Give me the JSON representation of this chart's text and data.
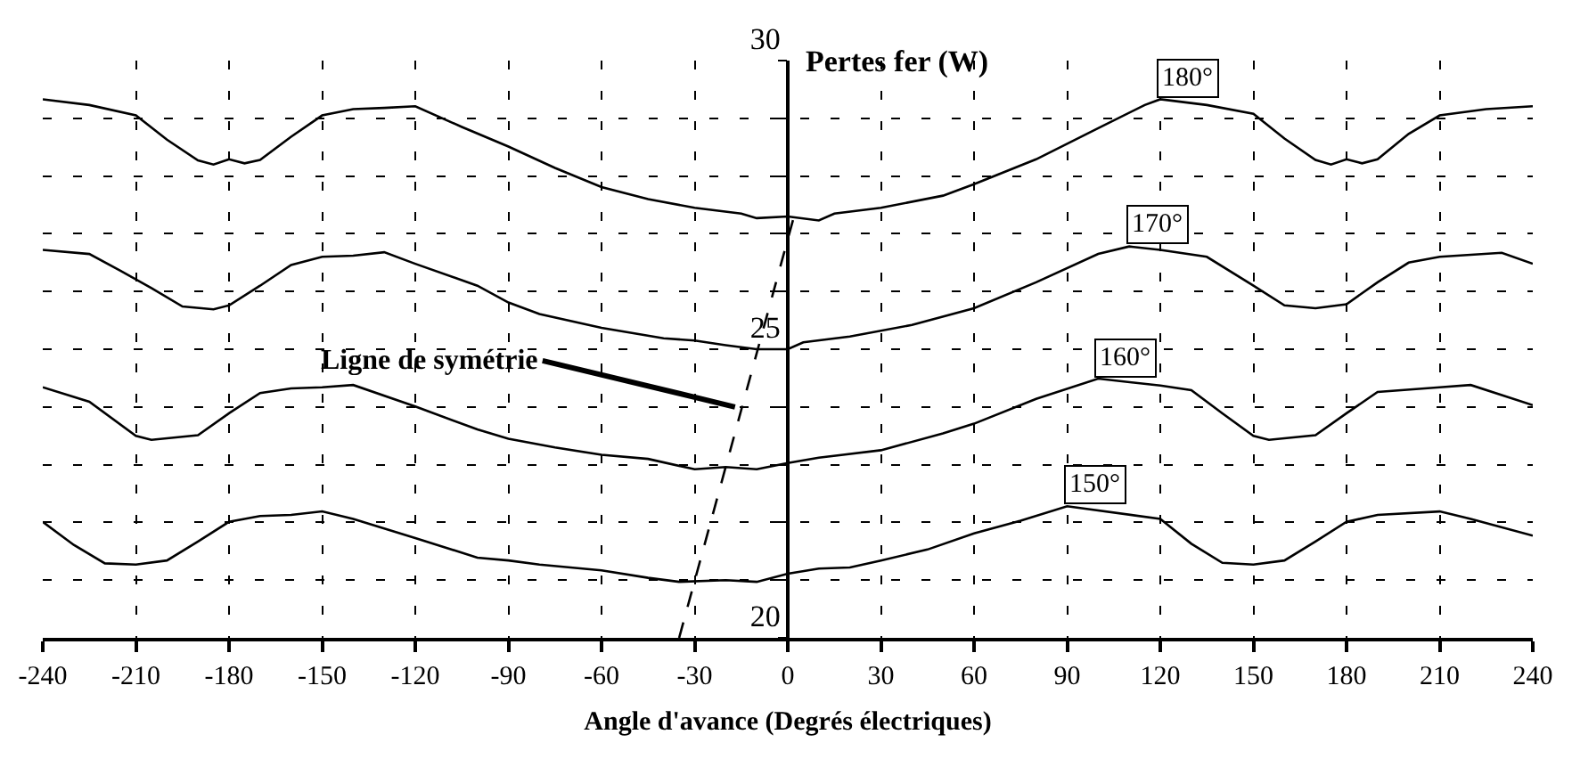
{
  "chart_data": {
    "type": "line",
    "xlabel": "Angle d'avance (Degrés électriques)",
    "ylabel": "Pertes fer (W)",
    "xlim": [
      -240,
      240
    ],
    "xticks": [
      -240,
      -210,
      -180,
      -150,
      -120,
      -90,
      -60,
      -30,
      0,
      30,
      60,
      90,
      120,
      150,
      180,
      210,
      240
    ],
    "ylim": [
      20,
      30
    ],
    "yticks": [
      20,
      {
        "value": 21,
        "label": null
      },
      {
        "value": 22,
        "label": null
      },
      {
        "value": 23,
        "label": null
      },
      {
        "value": 24,
        "label": null
      },
      25,
      {
        "value": 26,
        "label": null
      },
      {
        "value": 27,
        "label": null
      },
      {
        "value": 28,
        "label": null
      },
      {
        "value": 29,
        "label": null
      },
      30
    ],
    "grid": true,
    "legend": false,
    "annotations": [
      {
        "text": "Ligne de symétrie",
        "x": -17,
        "y": 24
      }
    ],
    "series": [
      {
        "name": "180°",
        "color": "#000000",
        "x": [
          -240,
          -225,
          -210,
          -200,
          -190,
          -185,
          -180,
          -175,
          -170,
          -160,
          -150,
          -140,
          -130,
          -120,
          -105,
          -90,
          -75,
          -60,
          -45,
          -30,
          -15,
          -10,
          0,
          10,
          15,
          30,
          50,
          60,
          80,
          100,
          115,
          120,
          135,
          150,
          160,
          170,
          175,
          180,
          185,
          190,
          200,
          210,
          225,
          240
        ],
        "values": [
          29.33,
          29.23,
          29.05,
          28.63,
          28.27,
          28.2,
          28.29,
          28.22,
          28.28,
          28.68,
          29.05,
          29.16,
          29.18,
          29.21,
          28.85,
          28.51,
          28.14,
          27.81,
          27.6,
          27.45,
          27.35,
          27.27,
          27.3,
          27.23,
          27.35,
          27.45,
          27.66,
          27.86,
          28.29,
          28.83,
          29.23,
          29.33,
          29.23,
          29.08,
          28.65,
          28.28,
          28.2,
          28.29,
          28.22,
          28.29,
          28.73,
          29.05,
          29.16,
          29.21
        ]
      },
      {
        "name": "170°",
        "color": "#000000",
        "x": [
          -240,
          -225,
          -215,
          -205,
          -195,
          -185,
          -180,
          -170,
          -160,
          -150,
          -140,
          -130,
          -120,
          -100,
          -90,
          -80,
          -60,
          -40,
          -30,
          -20,
          -10,
          0,
          5,
          20,
          40,
          60,
          80,
          100,
          110,
          120,
          135,
          150,
          160,
          170,
          180,
          190,
          200,
          210,
          230,
          240
        ],
        "values": [
          26.72,
          26.65,
          26.36,
          26.06,
          25.74,
          25.69,
          25.76,
          26.1,
          26.46,
          26.6,
          26.62,
          26.68,
          26.48,
          26.1,
          25.81,
          25.61,
          25.37,
          25.19,
          25.15,
          25.07,
          25.0,
          25.0,
          25.12,
          25.22,
          25.42,
          25.71,
          26.16,
          26.65,
          26.78,
          26.72,
          26.6,
          26.1,
          25.76,
          25.71,
          25.78,
          26.16,
          26.5,
          26.6,
          26.67,
          26.48
        ]
      },
      {
        "name": "160°",
        "color": "#000000",
        "x": [
          -240,
          -225,
          -210,
          -205,
          -190,
          -180,
          -170,
          -160,
          -150,
          -140,
          -120,
          -100,
          -90,
          -75,
          -60,
          -45,
          -30,
          -20,
          -10,
          0,
          10,
          30,
          50,
          60,
          80,
          100,
          120,
          130,
          140,
          150,
          155,
          170,
          180,
          190,
          210,
          220,
          240
        ],
        "values": [
          24.34,
          24.09,
          23.5,
          23.43,
          23.51,
          23.89,
          24.24,
          24.32,
          24.34,
          24.38,
          24.01,
          23.61,
          23.45,
          23.3,
          23.17,
          23.1,
          22.92,
          22.96,
          22.92,
          23.03,
          23.12,
          23.25,
          23.54,
          23.71,
          24.14,
          24.49,
          24.37,
          24.29,
          23.89,
          23.5,
          23.43,
          23.51,
          23.89,
          24.26,
          24.34,
          24.38,
          24.03
        ]
      },
      {
        "name": "150°",
        "color": "#000000",
        "x": [
          -240,
          -230,
          -220,
          -210,
          -200,
          -190,
          -180,
          -170,
          -160,
          -150,
          -140,
          -120,
          -100,
          -90,
          -80,
          -60,
          -45,
          -35,
          -20,
          -10,
          0,
          10,
          20,
          30,
          45,
          60,
          75,
          90,
          120,
          130,
          140,
          150,
          160,
          170,
          180,
          190,
          210,
          220,
          240
        ],
        "values": [
          22.01,
          21.61,
          21.29,
          21.27,
          21.34,
          21.67,
          22.01,
          22.11,
          22.13,
          22.19,
          22.06,
          21.73,
          21.39,
          21.34,
          21.27,
          21.17,
          21.04,
          20.97,
          21.0,
          20.97,
          21.11,
          21.2,
          21.22,
          21.34,
          21.53,
          21.81,
          22.03,
          22.28,
          22.06,
          21.63,
          21.3,
          21.27,
          21.34,
          21.67,
          22.01,
          22.13,
          22.19,
          22.06,
          21.77
        ]
      },
      {
        "type": "line",
        "line_style": "dashed",
        "color": "#000000",
        "x": [
          -35,
          2
        ],
        "values": [
          20,
          27.3
        ]
      }
    ]
  }
}
